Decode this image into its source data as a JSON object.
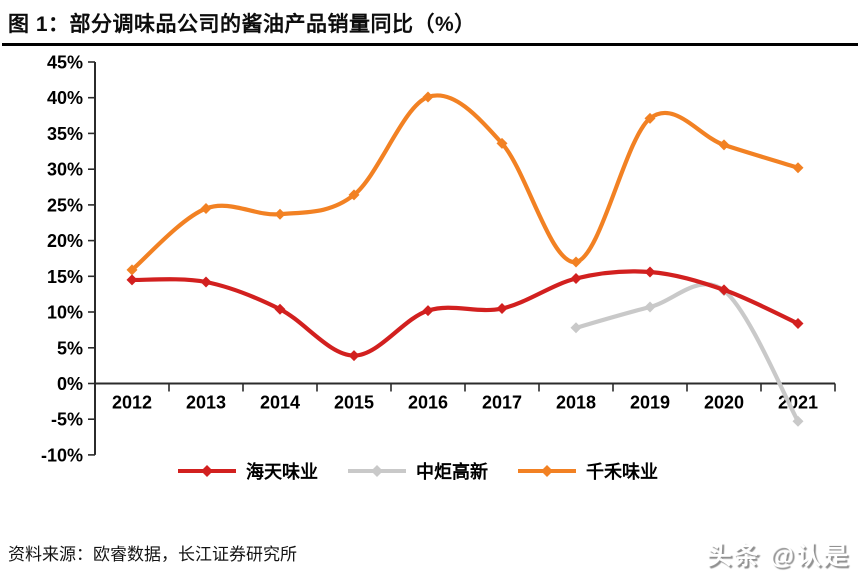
{
  "header": {
    "title": "图 1：部分调味品公司的酱油产品销量同比（%）"
  },
  "footer": {
    "source": "资料来源：欧睿数据，长江证券研究所",
    "watermark": "头条 @认是"
  },
  "chart_data": {
    "type": "line",
    "title": "部分调味品公司的酱油产品销量同比（%）",
    "categories": [
      "2012",
      "2013",
      "2014",
      "2015",
      "2016",
      "2017",
      "2018",
      "2019",
      "2020",
      "2021"
    ],
    "series": [
      {
        "name": "海天味业",
        "color": "#d2201f",
        "marker": "diamond",
        "values": [
          14.5,
          14.2,
          10.4,
          3.9,
          10.2,
          10.5,
          14.7,
          15.6,
          13.1,
          8.4
        ]
      },
      {
        "name": "中炬高新",
        "color": "#c9c9c9",
        "marker": "diamond",
        "values": [
          null,
          null,
          null,
          null,
          null,
          null,
          7.8,
          10.7,
          13.0,
          -5.3
        ]
      },
      {
        "name": "千禾味业",
        "color": "#f28123",
        "marker": "diamond",
        "values": [
          15.9,
          24.5,
          23.7,
          26.4,
          40.1,
          33.6,
          17.0,
          37.1,
          33.4,
          30.2
        ]
      }
    ],
    "ylim": [
      -10,
      45
    ],
    "ytick_values": [
      45,
      40,
      35,
      30,
      25,
      20,
      15,
      10,
      5,
      0,
      -5,
      -10
    ],
    "ytick_labels": [
      "45%",
      "40%",
      "35%",
      "30%",
      "25%",
      "20%",
      "15%",
      "10%",
      "5%",
      "0%",
      "-5%",
      "-10%"
    ],
    "xlabel": "",
    "ylabel": "",
    "grid": false,
    "legend_position": "bottom",
    "axis_color": "#2b2b2b",
    "smooth": true
  }
}
